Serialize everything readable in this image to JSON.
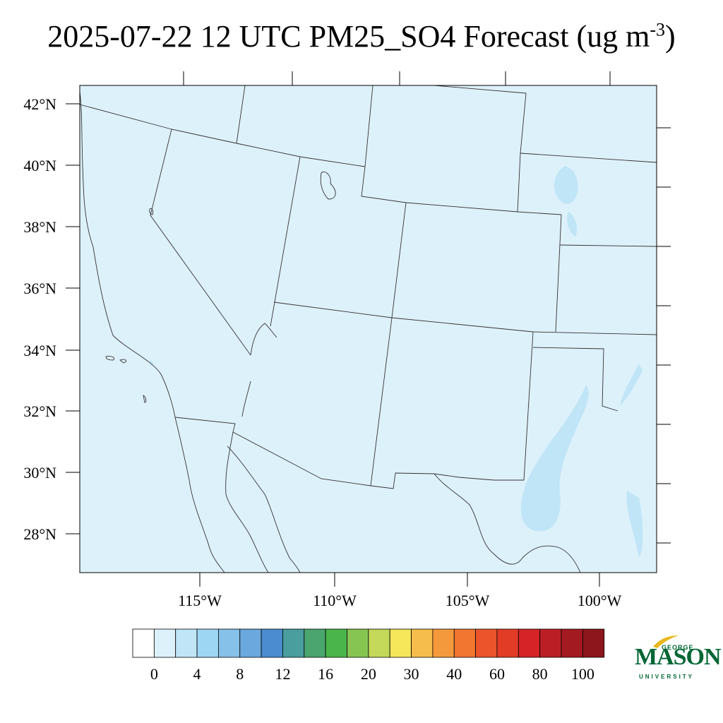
{
  "title": {
    "main": "2025-07-22 12 UTC PM25_SO4 Forecast (ug m",
    "exponent": "-3",
    "close": ")"
  },
  "map": {
    "region": "Southwestern United States and northern Mexico",
    "lat_labels": [
      "42°N",
      "40°N",
      "38°N",
      "36°N",
      "34°N",
      "32°N",
      "30°N",
      "28°N"
    ],
    "lon_labels": [
      "115°W",
      "110°W",
      "105°W",
      "100°W"
    ],
    "field_background_color": "#ddf1fb",
    "light_contour_color": "#bfe5f7",
    "boundary_color": "#333333"
  },
  "colorbar": {
    "labels": [
      "0",
      "4",
      "8",
      "12",
      "16",
      "20",
      "30",
      "40",
      "60",
      "80",
      "100"
    ],
    "colors": [
      "#ffffff",
      "#ddf1fb",
      "#bfe5f7",
      "#9dd6f3",
      "#85c1e9",
      "#6aa8dd",
      "#4a8ccf",
      "#4a9e9e",
      "#4aa66e",
      "#49b54a",
      "#86c552",
      "#c4d85a",
      "#f5e65a",
      "#f7bd4c",
      "#f59a3c",
      "#f27530",
      "#ec542b",
      "#e23c27",
      "#d52327",
      "#bb1f25",
      "#a31b21",
      "#8c161b"
    ]
  },
  "logo": {
    "name_big": "MASON",
    "name_top": "GEORGE",
    "name_bottom": "UNIVERSITY"
  }
}
